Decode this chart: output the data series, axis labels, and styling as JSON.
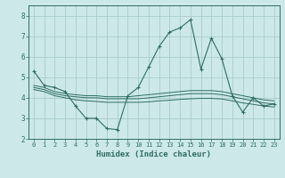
{
  "xlabel": "Humidex (Indice chaleur)",
  "bg_color": "#cce8e8",
  "grid_color": "#aacccc",
  "line_color": "#2e6e63",
  "xlim": [
    -0.5,
    23.5
  ],
  "ylim": [
    2,
    8.5
  ],
  "yticks": [
    2,
    3,
    4,
    5,
    6,
    7,
    8
  ],
  "xticks": [
    0,
    1,
    2,
    3,
    4,
    5,
    6,
    7,
    8,
    9,
    10,
    11,
    12,
    13,
    14,
    15,
    16,
    17,
    18,
    19,
    20,
    21,
    22,
    23
  ],
  "series": [
    [
      5.3,
      4.6,
      4.5,
      4.3,
      3.6,
      3.0,
      3.0,
      2.5,
      2.45,
      4.1,
      4.5,
      5.5,
      6.5,
      7.2,
      7.4,
      7.8,
      5.4,
      6.9,
      5.9,
      4.1,
      3.3,
      4.0,
      3.6,
      3.7
    ],
    [
      4.6,
      4.5,
      4.3,
      4.2,
      4.15,
      4.1,
      4.1,
      4.05,
      4.05,
      4.05,
      4.1,
      4.15,
      4.2,
      4.25,
      4.3,
      4.35,
      4.35,
      4.35,
      4.3,
      4.2,
      4.1,
      4.0,
      3.9,
      3.85
    ],
    [
      4.5,
      4.4,
      4.2,
      4.1,
      4.05,
      4.0,
      4.0,
      3.95,
      3.95,
      3.95,
      3.95,
      4.0,
      4.05,
      4.1,
      4.15,
      4.2,
      4.2,
      4.2,
      4.15,
      4.05,
      3.95,
      3.85,
      3.75,
      3.7
    ],
    [
      4.4,
      4.3,
      4.1,
      4.0,
      3.9,
      3.85,
      3.82,
      3.78,
      3.78,
      3.78,
      3.78,
      3.8,
      3.85,
      3.88,
      3.92,
      3.95,
      3.97,
      3.97,
      3.94,
      3.85,
      3.75,
      3.68,
      3.6,
      3.55
    ]
  ]
}
